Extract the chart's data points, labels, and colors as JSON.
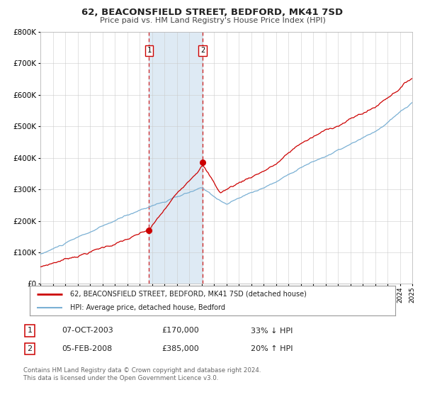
{
  "title": "62, BEACONSFIELD STREET, BEDFORD, MK41 7SD",
  "subtitle": "Price paid vs. HM Land Registry's House Price Index (HPI)",
  "legend_line1": "62, BEACONSFIELD STREET, BEDFORD, MK41 7SD (detached house)",
  "legend_line2": "HPI: Average price, detached house, Bedford",
  "footer1": "Contains HM Land Registry data © Crown copyright and database right 2024.",
  "footer2": "This data is licensed under the Open Government Licence v3.0.",
  "sale1_date": "07-OCT-2003",
  "sale1_price": "£170,000",
  "sale1_hpi": "33% ↓ HPI",
  "sale2_date": "05-FEB-2008",
  "sale2_price": "£385,000",
  "sale2_hpi": "20% ↑ HPI",
  "red_color": "#cc0000",
  "blue_color": "#7ab0d4",
  "shading_color": "#deeaf4",
  "grid_color": "#cccccc",
  "bg_color": "#ffffff",
  "ylim_min": 0,
  "ylim_max": 800000,
  "year_start": 1995,
  "year_end": 2025,
  "sale1_year": 2003.77,
  "sale2_year": 2008.09,
  "sale1_price_val": 170000,
  "sale2_price_val": 385000
}
